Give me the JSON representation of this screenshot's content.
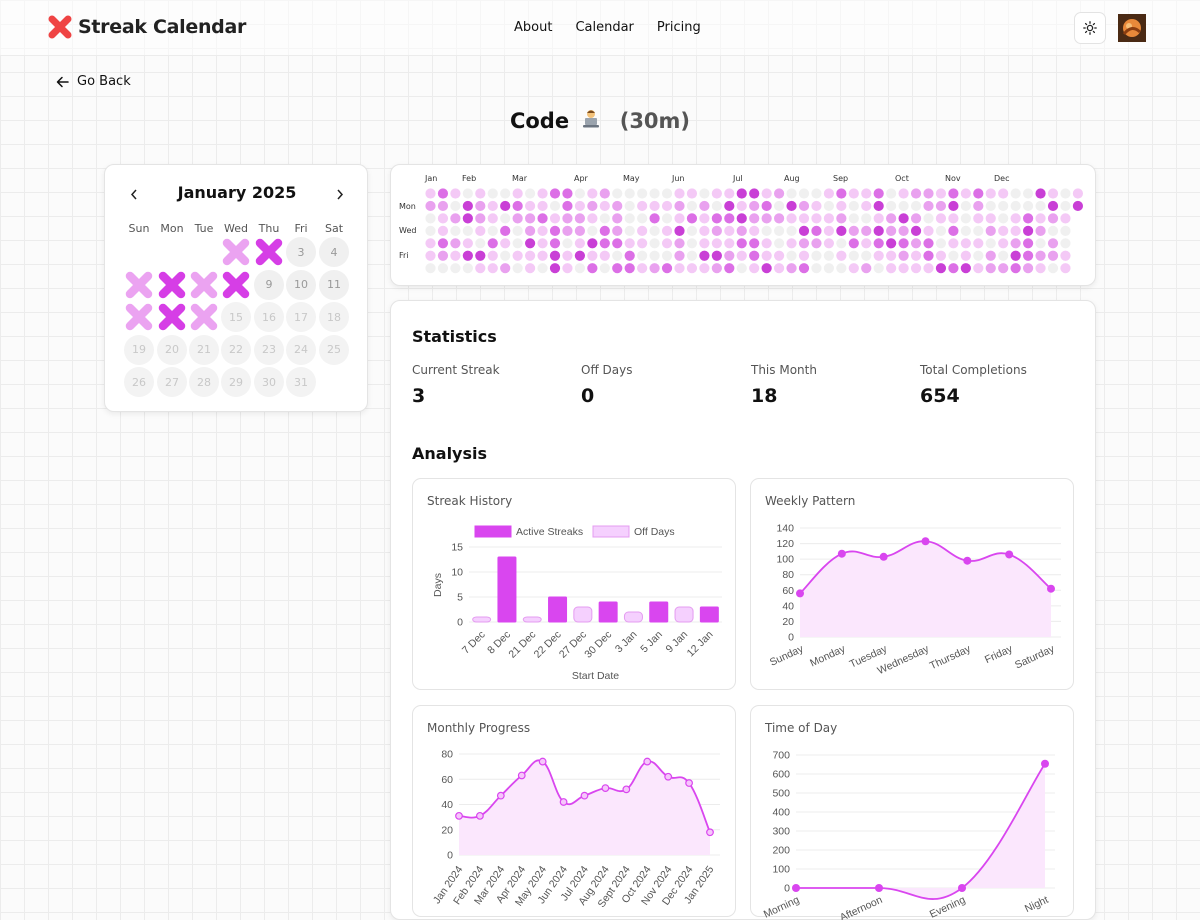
{
  "header": {
    "logo_text": "Streak Calendar",
    "nav": [
      "About",
      "Calendar",
      "Pricing"
    ]
  },
  "back_label": "Go Back",
  "title": {
    "name": "Code",
    "duration": "(30m)",
    "emoji": "technologist-emoji"
  },
  "calendar": {
    "month_label": "January 2025",
    "weekdays": [
      "Sun",
      "Mon",
      "Tue",
      "Wed",
      "Thu",
      "Fri",
      "Sat"
    ],
    "first_weekday_index": 3,
    "days_in_month": 31,
    "today": 14,
    "completions": {
      "1": "light",
      "2": "dark",
      "5": "light",
      "6": "dark",
      "7": "light",
      "8": "dark",
      "12": "light",
      "13": "dark",
      "14": "light"
    }
  },
  "heatmap": {
    "months": [
      "Jan",
      "Feb",
      "Mar",
      "Apr",
      "May",
      "Jun",
      "Jul",
      "Aug",
      "Sep",
      "Oct",
      "Nov",
      "Dec"
    ],
    "day_labels": [
      "Mon",
      "Wed",
      "Fri"
    ],
    "weeks": 53,
    "levels": [
      "#f0f0f0",
      "#f4c9f6",
      "#e9a1ef",
      "#dc6fe6",
      "#c93fd6"
    ]
  },
  "statistics": {
    "title": "Statistics",
    "items": [
      {
        "label": "Current Streak",
        "value": "3"
      },
      {
        "label": "Off Days",
        "value": "0"
      },
      {
        "label": "This Month",
        "value": "18"
      },
      {
        "label": "Total Completions",
        "value": "654"
      }
    ]
  },
  "analysis_title": "Analysis",
  "colors": {
    "accent": "#d946ef",
    "accent_light": "#f5d0fe",
    "fill": "#fbe7fd"
  },
  "chart_data": [
    {
      "type": "bar",
      "title": "Streak History",
      "categories": [
        "7 Dec",
        "8 Dec",
        "21 Dec",
        "22 Dec",
        "27 Dec",
        "30 Dec",
        "3 Jan",
        "5 Jan",
        "9 Jan",
        "12 Jan"
      ],
      "series": [
        {
          "name": "Active Streaks",
          "values": [
            1,
            13,
            1,
            5,
            3,
            4,
            2,
            4,
            3,
            3
          ]
        },
        {
          "name": "Off Days"
        }
      ],
      "bar_kind": [
        "off",
        "active",
        "off",
        "active",
        "off",
        "active",
        "off",
        "active",
        "off",
        "active"
      ],
      "xlabel": "Start Date",
      "ylabel": "Days",
      "ylim": [
        0,
        15
      ],
      "yticks": [
        0,
        5,
        10,
        15
      ],
      "legend": "top"
    },
    {
      "type": "area",
      "title": "Weekly Pattern",
      "categories": [
        "Sunday",
        "Monday",
        "Tuesday",
        "Wednesday",
        "Thursday",
        "Friday",
        "Saturday"
      ],
      "values": [
        56,
        107,
        103,
        123,
        98,
        106,
        62
      ],
      "ylim": [
        0,
        140
      ],
      "yticks": [
        0,
        20,
        40,
        60,
        80,
        100,
        120,
        140
      ]
    },
    {
      "type": "area",
      "title": "Monthly Progress",
      "categories": [
        "Jan 2024",
        "Feb 2024",
        "Mar 2024",
        "Apr 2024",
        "May 2024",
        "Jun 2024",
        "Jul 2024",
        "Aug 2024",
        "Sept 2024",
        "Oct 2024",
        "Nov 2024",
        "Dec 2024",
        "Jan 2025"
      ],
      "values": [
        31,
        31,
        47,
        63,
        74,
        42,
        47,
        53,
        52,
        74,
        62,
        57,
        18
      ],
      "ylim": [
        0,
        80
      ],
      "yticks": [
        0,
        20,
        40,
        60,
        80
      ]
    },
    {
      "type": "area",
      "title": "Time of Day",
      "categories": [
        "Morning",
        "Afternoon",
        "Evening",
        "Night"
      ],
      "values": [
        0,
        0,
        0,
        654
      ],
      "ylim": [
        0,
        700
      ],
      "yticks": [
        0,
        100,
        200,
        300,
        400,
        500,
        600,
        700
      ]
    }
  ]
}
